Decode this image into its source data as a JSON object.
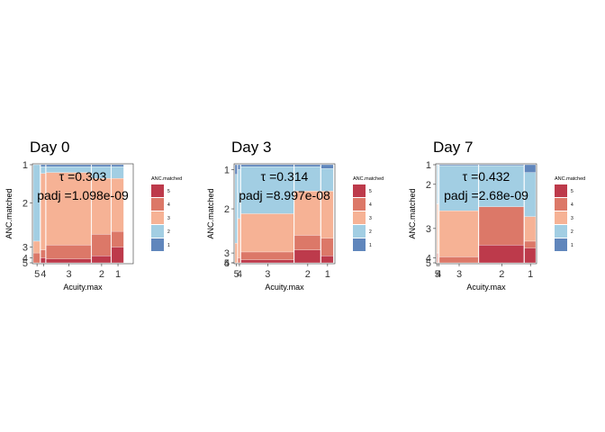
{
  "colors": {
    "5": "#b2182b",
    "4": "#d6604d",
    "3": "#f4a582",
    "2": "#92c5de",
    "1": "#4471b0"
  },
  "chart_data": [
    {
      "type": "mosaic",
      "title": "Day 0",
      "xlabel": "Acuity.max",
      "ylabel": "ANC.matched",
      "annotation_tau": "τ =0.303",
      "annotation_padj": "padj =1.098e-09",
      "x_tick_labels": [
        "5",
        "4",
        "3",
        "2",
        "1"
      ],
      "y_tick_labels": [
        "1",
        "2",
        "3",
        "4",
        "5"
      ],
      "legend_title": "ANC.matched",
      "legend_labels": [
        "5",
        "4",
        "3",
        "2",
        "1"
      ],
      "columns": [
        {
          "acuity": "5",
          "width": 0.075,
          "shares": {
            "1": 0.0,
            "2": 0.78,
            "3": 0.12,
            "4": 0.1,
            "5": 0.0
          }
        },
        {
          "acuity": "4",
          "width": 0.055,
          "shares": {
            "1": 0.02,
            "2": 0.07,
            "3": 0.78,
            "4": 0.08,
            "5": 0.05
          }
        },
        {
          "acuity": "3",
          "width": 0.46,
          "shares": {
            "1": 0.02,
            "2": 0.06,
            "3": 0.74,
            "4": 0.14,
            "5": 0.04
          }
        },
        {
          "acuity": "2",
          "width": 0.2,
          "shares": {
            "1": 0.02,
            "2": 0.12,
            "3": 0.57,
            "4": 0.22,
            "5": 0.07
          }
        },
        {
          "acuity": "1",
          "width": 0.13,
          "shares": {
            "1": 0.02,
            "2": 0.12,
            "3": 0.54,
            "4": 0.16,
            "5": 0.16
          }
        }
      ]
    },
    {
      "type": "mosaic",
      "title": "Day 3",
      "xlabel": "Acuity.max",
      "ylabel": "ANC.matched",
      "annotation_tau": "τ =0.314",
      "annotation_padj": "padj =8.997e-08",
      "x_tick_labels": [
        "5",
        "4",
        "3",
        "2",
        "1"
      ],
      "y_tick_labels": [
        "1",
        "2",
        "3",
        "4",
        "5"
      ],
      "legend_title": "ANC.matched",
      "legend_labels": [
        "5",
        "4",
        "3",
        "2",
        "1"
      ],
      "columns": [
        {
          "acuity": "5",
          "width": 0.03,
          "shares": {
            "1": 0.1,
            "2": 0.7,
            "3": 0.2,
            "4": 0.0,
            "5": 0.0
          }
        },
        {
          "acuity": "4",
          "width": 0.03,
          "shares": {
            "1": 0.05,
            "2": 0.5,
            "3": 0.4,
            "4": 0.05,
            "5": 0.0
          }
        },
        {
          "acuity": "3",
          "width": 0.54,
          "shares": {
            "1": 0.02,
            "2": 0.48,
            "3": 0.39,
            "4": 0.08,
            "5": 0.03
          }
        },
        {
          "acuity": "2",
          "width": 0.27,
          "shares": {
            "1": 0.02,
            "2": 0.25,
            "3": 0.45,
            "4": 0.15,
            "5": 0.13
          }
        },
        {
          "acuity": "1",
          "width": 0.13,
          "shares": {
            "1": 0.04,
            "2": 0.23,
            "3": 0.48,
            "4": 0.18,
            "5": 0.07
          }
        }
      ]
    },
    {
      "type": "mosaic",
      "title": "Day 7",
      "xlabel": "Acuity.max",
      "ylabel": "ANC.matched",
      "annotation_tau": "τ =0.432",
      "annotation_padj": "padj =2.68e-09",
      "x_tick_labels": [
        "5",
        "4",
        "3",
        "2",
        "1"
      ],
      "y_tick_labels": [
        "1",
        "2",
        "3",
        "4",
        "5"
      ],
      "legend_title": "ANC.matched",
      "legend_labels": [
        "5",
        "4",
        "3",
        "2",
        "1"
      ],
      "columns": [
        {
          "acuity": "5",
          "width": 0.01,
          "shares": {
            "1": 0.0,
            "2": 0.4,
            "3": 0.5,
            "4": 0.1,
            "5": 0.0
          }
        },
        {
          "acuity": "4",
          "width": 0.01,
          "shares": {
            "1": 0.0,
            "2": 0.4,
            "3": 0.5,
            "4": 0.1,
            "5": 0.0
          }
        },
        {
          "acuity": "3",
          "width": 0.4,
          "shares": {
            "1": 0.01,
            "2": 0.46,
            "3": 0.47,
            "4": 0.06,
            "5": 0.0
          }
        },
        {
          "acuity": "2",
          "width": 0.46,
          "shares": {
            "1": 0.01,
            "2": 0.42,
            "3": 0.0,
            "4": 0.39,
            "5": 0.18
          }
        },
        {
          "acuity": "1",
          "width": 0.12,
          "shares": {
            "1": 0.08,
            "2": 0.45,
            "3": 0.25,
            "4": 0.07,
            "5": 0.15
          }
        }
      ]
    }
  ]
}
